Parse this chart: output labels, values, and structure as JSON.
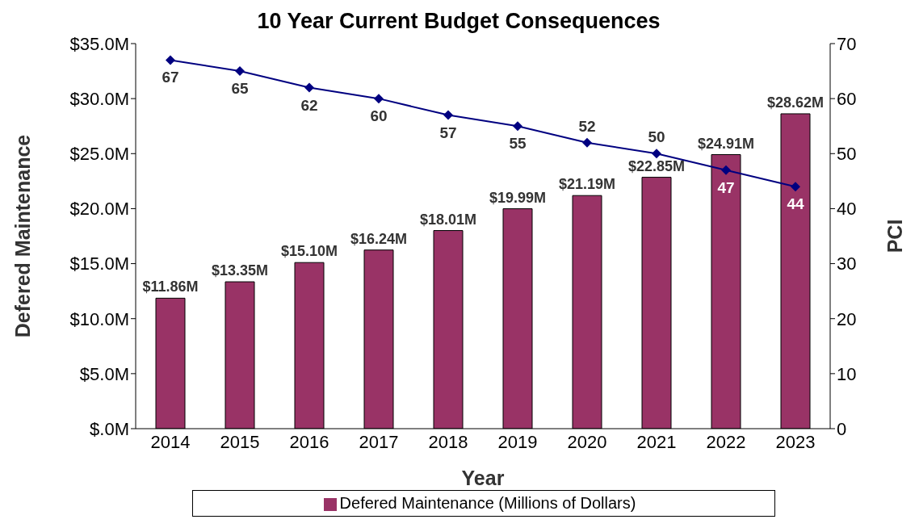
{
  "chart_data": {
    "type": "bar",
    "title": "10 Year Current Budget Consequences",
    "xlabel": "Year",
    "ylabel": "Defered Maintenance",
    "y2label": "PCI",
    "categories": [
      "2014",
      "2015",
      "2016",
      "2017",
      "2018",
      "2019",
      "2020",
      "2021",
      "2022",
      "2023"
    ],
    "series": [
      {
        "name": "Defered Maintenance (Millions of Dollars)",
        "color": "#993366",
        "values": [
          11.86,
          13.35,
          15.1,
          16.24,
          18.01,
          19.99,
          21.19,
          22.85,
          24.91,
          28.62
        ],
        "value_labels": [
          "$11.86M",
          "$13.35M",
          "$15.10M",
          "$16.24M",
          "$18.01M",
          "$19.99M",
          "$21.19M",
          "$22.85M",
          "$24.91M",
          "$28.62M"
        ]
      },
      {
        "type": "line",
        "axis": "y2",
        "color": "#000080",
        "values": [
          67,
          65,
          62,
          60,
          57,
          55,
          52,
          50,
          47,
          44
        ],
        "marker": "diamond",
        "data_labels": true
      }
    ],
    "ylim": [
      0,
      35
    ],
    "yticks": [
      {
        "value": 0,
        "label": "$.0M"
      },
      {
        "value": 5,
        "label": "$5.0M"
      },
      {
        "value": 10,
        "label": "$10.0M"
      },
      {
        "value": 15,
        "label": "$15.0M"
      },
      {
        "value": 20,
        "label": "$20.0M"
      },
      {
        "value": 25,
        "label": "$25.0M"
      },
      {
        "value": 30,
        "label": "$30.0M"
      },
      {
        "value": 35,
        "label": "$35.0M"
      }
    ],
    "y2lim": [
      0,
      70
    ],
    "y2ticks": [
      0,
      10,
      20,
      30,
      40,
      50,
      60,
      70
    ],
    "grid": false,
    "legend": "bottom"
  }
}
